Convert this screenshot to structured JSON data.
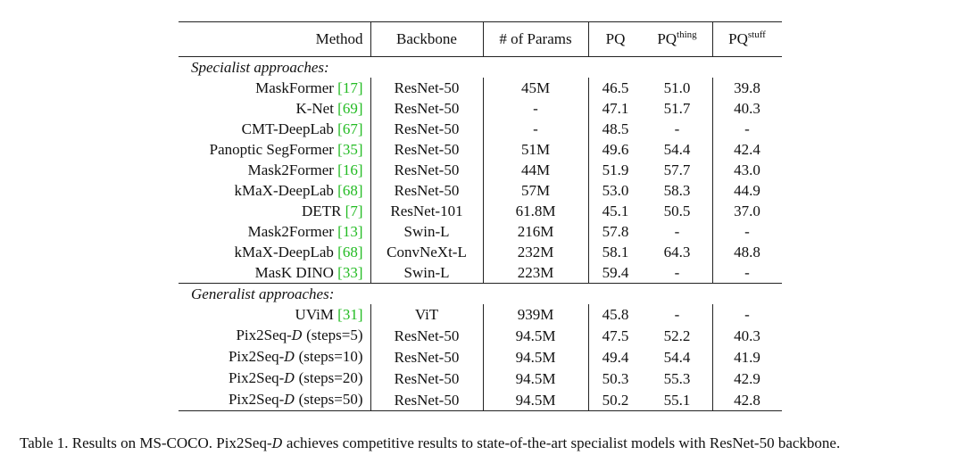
{
  "header": {
    "method": "Method",
    "backbone": "Backbone",
    "params": "# of Params",
    "pq": "PQ",
    "pq_thing_base": "PQ",
    "pq_thing_sup": "thing",
    "pq_stuff_base": "PQ",
    "pq_stuff_sup": "stuff"
  },
  "sections": {
    "specialist": "Specialist approaches:",
    "generalist": "Generalist approaches:"
  },
  "specialist_rows": [
    {
      "method": "MaskFormer",
      "ref": "[17]",
      "backbone": "ResNet-50",
      "params": "45M",
      "pq": "46.5",
      "pq_thing": "51.0",
      "pq_stuff": "39.8"
    },
    {
      "method": "K-Net",
      "ref": "[69]",
      "backbone": "ResNet-50",
      "params": "-",
      "pq": "47.1",
      "pq_thing": "51.7",
      "pq_stuff": "40.3"
    },
    {
      "method": "CMT-DeepLab",
      "ref": "[67]",
      "backbone": "ResNet-50",
      "params": "-",
      "pq": "48.5",
      "pq_thing": "-",
      "pq_stuff": "-"
    },
    {
      "method": "Panoptic SegFormer",
      "ref": "[35]",
      "backbone": "ResNet-50",
      "params": "51M",
      "pq": "49.6",
      "pq_thing": "54.4",
      "pq_stuff": "42.4"
    },
    {
      "method": "Mask2Former",
      "ref": "[16]",
      "backbone": "ResNet-50",
      "params": "44M",
      "pq": "51.9",
      "pq_thing": "57.7",
      "pq_stuff": "43.0"
    },
    {
      "method": "kMaX-DeepLab",
      "ref": "[68]",
      "backbone": "ResNet-50",
      "params": "57M",
      "pq": "53.0",
      "pq_thing": "58.3",
      "pq_stuff": "44.9"
    },
    {
      "method": "DETR",
      "ref": "[7]",
      "backbone": "ResNet-101",
      "params": "61.8M",
      "pq": "45.1",
      "pq_thing": "50.5",
      "pq_stuff": "37.0"
    },
    {
      "method": "Mask2Former",
      "ref": "[13]",
      "backbone": "Swin-L",
      "params": "216M",
      "pq": "57.8",
      "pq_thing": "-",
      "pq_stuff": "-"
    },
    {
      "method": "kMaX-DeepLab",
      "ref": "[68]",
      "backbone": "ConvNeXt-L",
      "params": "232M",
      "pq": "58.1",
      "pq_thing": "64.3",
      "pq_stuff": "48.8"
    },
    {
      "method": "MasK DINO",
      "ref": "[33]",
      "backbone": "Swin-L",
      "params": "223M",
      "pq": "59.4",
      "pq_thing": "-",
      "pq_stuff": "-"
    }
  ],
  "generalist_rows": [
    {
      "method": "UViM",
      "ref": "[31]",
      "suffix": "",
      "backbone": "ViT",
      "params": "939M",
      "pq": "45.8",
      "pq_thing": "-",
      "pq_stuff": "-"
    },
    {
      "method": "Pix2Seq-",
      "ref": "",
      "cal": "D",
      "suffix": " (steps=5)",
      "backbone": "ResNet-50",
      "params": "94.5M",
      "pq": "47.5",
      "pq_thing": "52.2",
      "pq_stuff": "40.3"
    },
    {
      "method": "Pix2Seq-",
      "ref": "",
      "cal": "D",
      "suffix": " (steps=10)",
      "backbone": "ResNet-50",
      "params": "94.5M",
      "pq": "49.4",
      "pq_thing": "54.4",
      "pq_stuff": "41.9"
    },
    {
      "method": "Pix2Seq-",
      "ref": "",
      "cal": "D",
      "suffix": " (steps=20)",
      "backbone": "ResNet-50",
      "params": "94.5M",
      "pq": "50.3",
      "pq_thing": "55.3",
      "pq_stuff": "42.9"
    },
    {
      "method": "Pix2Seq-",
      "ref": "",
      "cal": "D",
      "suffix": " (steps=50)",
      "backbone": "ResNet-50",
      "params": "94.5M",
      "pq": "50.2",
      "pq_thing": "55.1",
      "pq_stuff": "42.8"
    }
  ],
  "caption": {
    "part1": "Table 1. Results on MS-COCO. Pix2Seq-",
    "cal": "D",
    "part2": " achieves competitive results to state-of-the-art specialist models with ResNet-50 backbone."
  },
  "colors": {
    "citation": "#22bb22",
    "text": "#111111",
    "rule": "#222222"
  }
}
